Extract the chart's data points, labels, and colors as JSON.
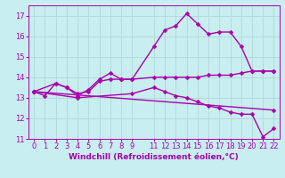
{
  "bg_color": "#c8eef0",
  "grid_color": "#b0d8d8",
  "line_color": "#aa00aa",
  "marker": "D",
  "marker_size": 2.5,
  "line_width": 1.0,
  "xlim": [
    -0.5,
    22.5
  ],
  "ylim": [
    11,
    17.5
  ],
  "yticks": [
    11,
    12,
    13,
    14,
    15,
    16,
    17
  ],
  "xticks": [
    0,
    1,
    2,
    3,
    4,
    5,
    6,
    7,
    8,
    9,
    11,
    12,
    13,
    14,
    15,
    16,
    17,
    18,
    19,
    20,
    21,
    22
  ],
  "xlabel": "Windchill (Refroidissement éolien,°C)",
  "xlabel_fontsize": 6.5,
  "tick_fontsize": 6,
  "series": [
    {
      "x": [
        0,
        1,
        2,
        3,
        4,
        5,
        6,
        7,
        8,
        9,
        11,
        12,
        13,
        14,
        15,
        16,
        17,
        18,
        19,
        20,
        21,
        22
      ],
      "y": [
        13.3,
        13.1,
        13.7,
        13.5,
        13.1,
        13.4,
        13.9,
        14.2,
        13.9,
        13.9,
        15.5,
        16.3,
        16.5,
        17.1,
        16.6,
        16.1,
        16.2,
        16.2,
        15.5,
        14.3,
        14.3,
        14.3
      ]
    },
    {
      "x": [
        0,
        2,
        3,
        4,
        5,
        6,
        7,
        8,
        9,
        11,
        12,
        13,
        14,
        15,
        16,
        17,
        18,
        19,
        20,
        21,
        22
      ],
      "y": [
        13.3,
        13.7,
        13.5,
        13.2,
        13.3,
        13.8,
        13.9,
        13.9,
        13.9,
        14.0,
        14.0,
        14.0,
        14.0,
        14.0,
        14.1,
        14.1,
        14.1,
        14.2,
        14.3,
        14.3,
        14.3
      ]
    },
    {
      "x": [
        0,
        22
      ],
      "y": [
        13.3,
        12.4
      ]
    },
    {
      "x": [
        0,
        4,
        9,
        11,
        12,
        13,
        14,
        15,
        16,
        17,
        18,
        19,
        20,
        21,
        22
      ],
      "y": [
        13.3,
        13.0,
        13.2,
        13.5,
        13.3,
        13.1,
        13.0,
        12.8,
        12.6,
        12.5,
        12.3,
        12.2,
        12.2,
        11.1,
        11.5
      ]
    }
  ]
}
